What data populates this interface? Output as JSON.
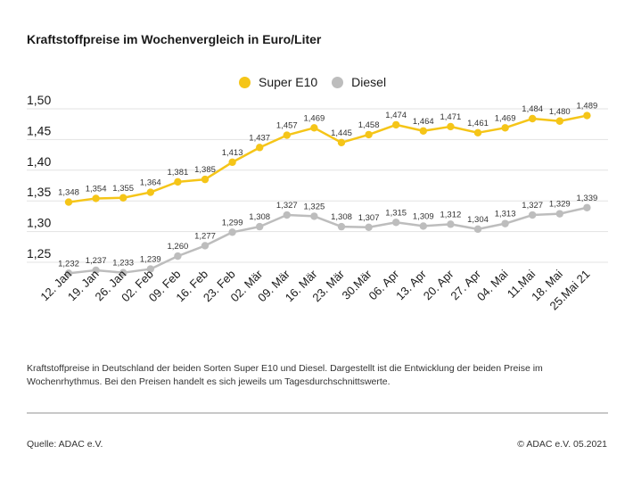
{
  "header": {
    "title": "Kraftstoffpreise im Wochenvergleich in Euro/Liter"
  },
  "legend": [
    {
      "label": "Super E10",
      "color": "#f5c518"
    },
    {
      "label": "Diesel",
      "color": "#bdbdbd"
    }
  ],
  "chart_data": {
    "type": "line",
    "title": "Kraftstoffpreise im Wochenvergleich in Euro/Liter",
    "xlabel": "",
    "ylabel": "",
    "categories": [
      "12. Jan",
      "19. Jan",
      "26. Jan",
      "02. Feb",
      "09. Feb",
      "16. Feb",
      "23. Feb",
      "02. Mär",
      "09. Mär",
      "16. Mär",
      "23. Mär",
      "30.Mär",
      "06. Apr",
      "13. Apr",
      "20. Apr",
      "27. Apr",
      "04. Mai",
      "11.Mai",
      "18. Mai",
      "25.Mai 21"
    ],
    "series": [
      {
        "name": "Super E10",
        "color": "#f5c518",
        "values": [
          1.348,
          1.354,
          1.355,
          1.364,
          1.381,
          1.385,
          1.413,
          1.437,
          1.457,
          1.469,
          1.445,
          1.458,
          1.474,
          1.464,
          1.471,
          1.461,
          1.469,
          1.484,
          1.48,
          1.489
        ],
        "labels": [
          "1,348",
          "1,354",
          "1,355",
          "1,364",
          "1,381",
          "1,385",
          "1,413",
          "1,437",
          "1,457",
          "1,469",
          "1,445",
          "1,458",
          "1,474",
          "1,464",
          "1,471",
          "1,461",
          "1,469",
          "1,484",
          "1,480",
          "1,489"
        ]
      },
      {
        "name": "Diesel",
        "color": "#bdbdbd",
        "values": [
          1.232,
          1.237,
          1.233,
          1.239,
          1.26,
          1.277,
          1.299,
          1.308,
          1.327,
          1.325,
          1.308,
          1.307,
          1.315,
          1.309,
          1.312,
          1.304,
          1.313,
          1.327,
          1.329,
          1.339
        ],
        "labels": [
          "1,232",
          "1,237",
          "1,233",
          "1,239",
          "1,260",
          "1,277",
          "1,299",
          "1,308",
          "1,327",
          "1,325",
          "1,308",
          "1,307",
          "1,315",
          "1,309",
          "1,312",
          "1,304",
          "1,313",
          "1,327",
          "1,329",
          "1,339"
        ]
      }
    ],
    "y_ticks": [
      1.25,
      1.3,
      1.35,
      1.4,
      1.45,
      1.5
    ],
    "y_tick_labels": [
      "1,25",
      "1,30",
      "1,35",
      "1,40",
      "1,45",
      "1,50"
    ],
    "ylim": [
      1.2,
      1.5
    ],
    "grid": true,
    "legend_position": "top-center"
  },
  "footer": {
    "description": "Kraftstoffpreise in Deutschland der beiden Sorten Super E10 und Diesel. Dargestellt ist die Entwicklung der beiden Preise im Wochenrhythmus. Bei den Preisen handelt es sich jeweils um Tagesdurchschnittswerte.",
    "source": "Quelle: ADAC e.V.",
    "copyright": "© ADAC e.V. 05.2021"
  }
}
